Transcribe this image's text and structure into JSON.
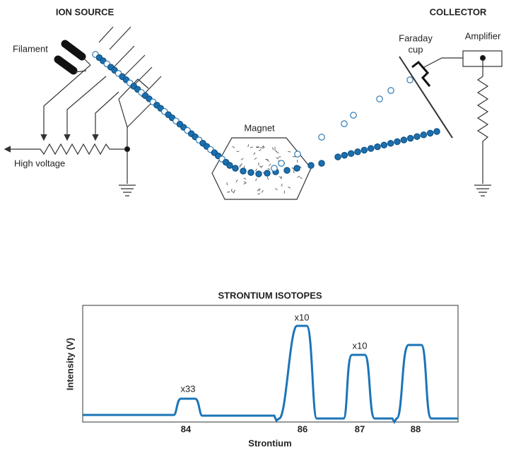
{
  "labels": {
    "ion_source": "ION SOURCE",
    "collector": "COLLECTOR",
    "filament": "Filament",
    "high_voltage": "High voltage",
    "magnet": "Magnet",
    "faraday_cup": [
      "Faraday",
      "cup"
    ],
    "amplifier": "Amplifier"
  },
  "spectrum": {
    "title": "STRONTIUM ISOTOPES",
    "y_label": "Intensity (V)",
    "x_label": "Strontium",
    "peaks": [
      {
        "label": "84",
        "annotation": "x33"
      },
      {
        "label": "86",
        "annotation": "x10"
      },
      {
        "label": "87",
        "annotation": "x10"
      },
      {
        "label": "88"
      }
    ]
  }
}
